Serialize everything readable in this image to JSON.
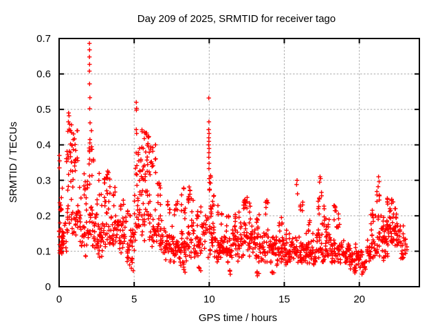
{
  "chart_data": {
    "type": "scatter",
    "title": "Day 209 of 2025, SRMTID for receiver tago",
    "xlabel": "GPS time / hours",
    "ylabel": "SRMTID / TECUs",
    "xlim": [
      0,
      24
    ],
    "ylim": [
      0,
      0.7
    ],
    "x_ticks": [
      0,
      5,
      10,
      15,
      20
    ],
    "x_tick_labels": [
      "0",
      "5",
      "10",
      "15",
      "20"
    ],
    "y_ticks": [
      0,
      0.1,
      0.2,
      0.3,
      0.4,
      0.5,
      0.6,
      0.7
    ],
    "y_tick_labels": [
      "0",
      "0.1",
      "0.2",
      "0.3",
      "0.4",
      "0.5",
      "0.6",
      "0.7"
    ],
    "grid": true,
    "legend": "none",
    "marker": {
      "shape": "plus",
      "size": 6.4,
      "color": "#ff0000"
    },
    "colors": {
      "marker": "#ff0000",
      "grid": "#a8a8a8",
      "axis": "#000000",
      "background": "#ffffff",
      "text": "#000000"
    },
    "spike_points": [
      [
        0.02,
        0.37
      ],
      [
        0.03,
        0.355
      ],
      [
        0.02,
        0.335
      ],
      [
        0.63,
        0.49
      ],
      [
        0.66,
        0.482
      ],
      [
        0.62,
        0.465
      ],
      [
        2.02,
        0.686
      ],
      [
        2.03,
        0.668
      ],
      [
        2.02,
        0.648
      ],
      [
        2.03,
        0.627
      ],
      [
        2.02,
        0.608
      ],
      [
        2.03,
        0.572
      ],
      [
        2.05,
        0.533
      ],
      [
        2.04,
        0.502
      ],
      [
        2.06,
        0.462
      ],
      [
        2.05,
        0.415
      ],
      [
        5.14,
        0.52
      ],
      [
        5.16,
        0.503
      ],
      [
        5.15,
        0.498
      ],
      [
        5.14,
        0.443
      ],
      [
        5.16,
        0.432
      ],
      [
        9.97,
        0.532
      ],
      [
        9.98,
        0.465
      ],
      [
        9.96,
        0.443
      ],
      [
        9.99,
        0.432
      ],
      [
        9.97,
        0.42
      ],
      [
        9.98,
        0.41
      ],
      [
        9.96,
        0.4
      ],
      [
        9.99,
        0.39
      ],
      [
        9.98,
        0.378
      ],
      [
        9.97,
        0.365
      ],
      [
        9.99,
        0.348
      ],
      [
        9.98,
        0.333
      ],
      [
        10.0,
        0.305
      ],
      [
        10.02,
        0.275
      ],
      [
        15.85,
        0.3
      ],
      [
        15.82,
        0.288
      ],
      [
        15.88,
        0.262
      ],
      [
        17.38,
        0.31
      ],
      [
        17.42,
        0.305
      ],
      [
        17.35,
        0.295
      ],
      [
        21.28,
        0.31
      ],
      [
        21.32,
        0.296
      ],
      [
        21.25,
        0.282
      ]
    ],
    "density_clusters": [
      [
        0.0,
        0.3,
        0.08,
        0.18,
        26
      ],
      [
        0.0,
        0.25,
        0.18,
        0.34,
        10
      ],
      [
        0.3,
        0.55,
        0.1,
        0.2,
        12
      ],
      [
        0.5,
        1.1,
        0.28,
        0.47,
        34
      ],
      [
        0.5,
        1.1,
        0.15,
        0.28,
        20
      ],
      [
        1.1,
        1.5,
        0.12,
        0.28,
        22
      ],
      [
        1.0,
        1.3,
        0.28,
        0.44,
        10
      ],
      [
        1.5,
        2.0,
        0.08,
        0.2,
        22
      ],
      [
        1.6,
        2.05,
        0.2,
        0.33,
        14
      ],
      [
        1.95,
        2.3,
        0.25,
        0.44,
        14
      ],
      [
        2.0,
        2.5,
        0.1,
        0.25,
        26
      ],
      [
        2.5,
        3.0,
        0.08,
        0.2,
        30
      ],
      [
        2.5,
        2.9,
        0.2,
        0.32,
        8
      ],
      [
        2.95,
        3.4,
        0.24,
        0.37,
        18
      ],
      [
        3.0,
        3.5,
        0.1,
        0.24,
        24
      ],
      [
        3.5,
        4.0,
        0.09,
        0.2,
        26
      ],
      [
        3.5,
        3.8,
        0.2,
        0.28,
        6
      ],
      [
        4.0,
        4.5,
        0.08,
        0.2,
        28
      ],
      [
        4.1,
        4.4,
        0.2,
        0.26,
        5
      ],
      [
        4.5,
        5.0,
        0.06,
        0.16,
        26
      ],
      [
        4.75,
        4.95,
        0.03,
        0.08,
        7
      ],
      [
        4.5,
        4.8,
        0.16,
        0.22,
        5
      ],
      [
        5.1,
        5.5,
        0.26,
        0.42,
        18
      ],
      [
        5.0,
        5.5,
        0.12,
        0.26,
        22
      ],
      [
        5.5,
        6.05,
        0.27,
        0.46,
        32
      ],
      [
        5.5,
        6.0,
        0.13,
        0.27,
        22
      ],
      [
        6.0,
        6.5,
        0.24,
        0.4,
        18
      ],
      [
        6.0,
        6.5,
        0.1,
        0.24,
        22
      ],
      [
        6.55,
        6.8,
        0.2,
        0.31,
        11
      ],
      [
        6.5,
        7.0,
        0.09,
        0.2,
        26
      ],
      [
        7.0,
        7.5,
        0.07,
        0.18,
        30
      ],
      [
        7.1,
        7.5,
        0.18,
        0.24,
        6
      ],
      [
        7.5,
        8.0,
        0.07,
        0.17,
        30
      ],
      [
        7.6,
        8.0,
        0.18,
        0.27,
        9
      ],
      [
        8.0,
        8.5,
        0.06,
        0.16,
        30
      ],
      [
        8.1,
        8.45,
        0.18,
        0.28,
        9
      ],
      [
        8.25,
        8.4,
        0.035,
        0.055,
        4
      ],
      [
        8.5,
        9.0,
        0.08,
        0.18,
        26
      ],
      [
        8.55,
        8.95,
        0.18,
        0.3,
        13
      ],
      [
        9.0,
        9.5,
        0.07,
        0.16,
        26
      ],
      [
        9.1,
        9.45,
        0.16,
        0.25,
        8
      ],
      [
        9.3,
        9.45,
        0.04,
        0.06,
        4
      ],
      [
        9.5,
        9.95,
        0.08,
        0.2,
        22
      ],
      [
        9.95,
        10.1,
        0.25,
        0.33,
        6
      ],
      [
        10.05,
        10.35,
        0.17,
        0.3,
        12
      ],
      [
        10.0,
        10.5,
        0.08,
        0.17,
        26
      ],
      [
        10.5,
        11.0,
        0.07,
        0.16,
        30
      ],
      [
        10.55,
        10.9,
        0.16,
        0.24,
        6
      ],
      [
        11.0,
        11.5,
        0.06,
        0.15,
        30
      ],
      [
        11.3,
        11.45,
        0.035,
        0.055,
        4
      ],
      [
        11.05,
        11.3,
        0.15,
        0.22,
        5
      ],
      [
        11.5,
        12.0,
        0.07,
        0.16,
        30
      ],
      [
        11.6,
        12.0,
        0.16,
        0.25,
        8
      ],
      [
        12.0,
        12.5,
        0.08,
        0.18,
        26
      ],
      [
        12.25,
        12.5,
        0.18,
        0.28,
        10
      ],
      [
        12.5,
        13.0,
        0.08,
        0.18,
        26
      ],
      [
        12.5,
        12.8,
        0.18,
        0.28,
        8
      ],
      [
        13.0,
        13.5,
        0.07,
        0.16,
        26
      ],
      [
        13.1,
        13.4,
        0.16,
        0.24,
        7
      ],
      [
        13.15,
        13.3,
        0.03,
        0.05,
        4
      ],
      [
        13.5,
        14.0,
        0.07,
        0.16,
        26
      ],
      [
        13.75,
        13.95,
        0.2,
        0.27,
        7
      ],
      [
        14.0,
        14.5,
        0.06,
        0.14,
        30
      ],
      [
        14.15,
        14.3,
        0.03,
        0.05,
        4
      ],
      [
        14.5,
        15.0,
        0.06,
        0.14,
        30
      ],
      [
        14.6,
        14.9,
        0.14,
        0.2,
        6
      ],
      [
        15.0,
        15.5,
        0.06,
        0.13,
        30
      ],
      [
        15.1,
        15.4,
        0.13,
        0.18,
        5
      ],
      [
        15.5,
        16.0,
        0.06,
        0.14,
        26
      ],
      [
        16.0,
        16.5,
        0.06,
        0.15,
        30
      ],
      [
        16.0,
        16.3,
        0.17,
        0.26,
        6
      ],
      [
        16.5,
        17.0,
        0.06,
        0.15,
        30
      ],
      [
        16.5,
        16.8,
        0.15,
        0.2,
        5
      ],
      [
        17.0,
        17.5,
        0.07,
        0.16,
        26
      ],
      [
        17.25,
        17.5,
        0.2,
        0.29,
        8
      ],
      [
        17.5,
        18.0,
        0.07,
        0.15,
        22
      ],
      [
        17.5,
        18.05,
        0.13,
        0.23,
        20
      ],
      [
        18.0,
        18.5,
        0.06,
        0.14,
        26
      ],
      [
        18.3,
        18.5,
        0.18,
        0.25,
        7
      ],
      [
        18.5,
        19.0,
        0.06,
        0.14,
        26
      ],
      [
        18.5,
        18.75,
        0.14,
        0.22,
        7
      ],
      [
        19.0,
        19.5,
        0.05,
        0.13,
        32
      ],
      [
        19.5,
        20.0,
        0.04,
        0.12,
        30
      ],
      [
        19.6,
        19.8,
        0.03,
        0.045,
        3
      ],
      [
        20.0,
        20.5,
        0.035,
        0.1,
        22
      ],
      [
        20.5,
        21.0,
        0.06,
        0.16,
        26
      ],
      [
        20.7,
        21.0,
        0.16,
        0.25,
        8
      ],
      [
        21.0,
        21.5,
        0.08,
        0.2,
        26
      ],
      [
        21.15,
        21.4,
        0.22,
        0.28,
        6
      ],
      [
        21.5,
        22.0,
        0.1,
        0.22,
        34
      ],
      [
        21.8,
        21.95,
        0.22,
        0.26,
        5
      ],
      [
        21.5,
        22.0,
        0.07,
        0.1,
        8
      ],
      [
        22.0,
        22.5,
        0.1,
        0.22,
        36
      ],
      [
        22.1,
        22.35,
        0.22,
        0.26,
        4
      ],
      [
        22.5,
        23.0,
        0.08,
        0.18,
        30
      ],
      [
        23.0,
        23.2,
        0.09,
        0.14,
        8
      ]
    ]
  }
}
